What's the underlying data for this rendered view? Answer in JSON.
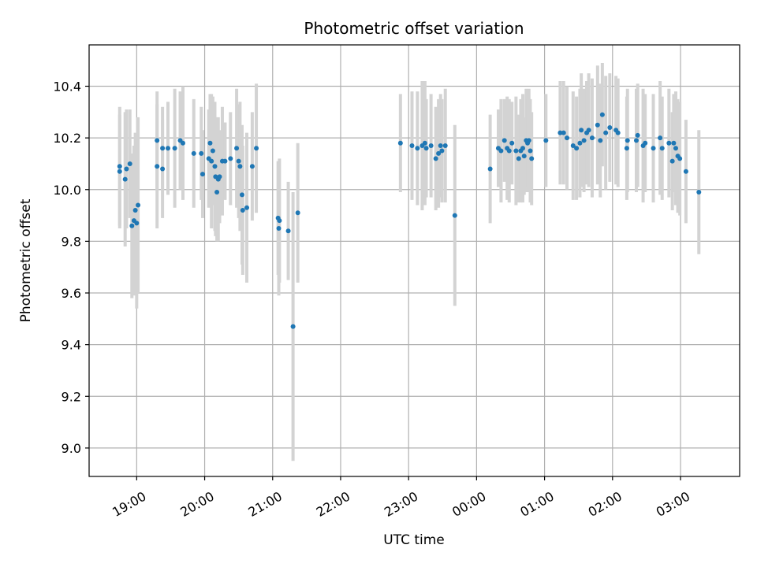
{
  "chart_data": {
    "type": "scatter",
    "title": "Photometric offset variation",
    "xlabel": "UTC time",
    "ylabel": "Photometric offset",
    "x_unit": "UTC time of day (hours after 00:00 on the first night; values above 24 fall after midnight)",
    "xlim": [
      18.3,
      27.87
    ],
    "ylim": [
      8.89,
      10.56
    ],
    "grid": true,
    "x_ticks": [
      {
        "value": 19,
        "label": "19:00"
      },
      {
        "value": 20,
        "label": "20:00"
      },
      {
        "value": 21,
        "label": "21:00"
      },
      {
        "value": 22,
        "label": "22:00"
      },
      {
        "value": 23,
        "label": "23:00"
      },
      {
        "value": 24,
        "label": "00:00"
      },
      {
        "value": 25,
        "label": "01:00"
      },
      {
        "value": 26,
        "label": "02:00"
      },
      {
        "value": 27,
        "label": "03:00"
      }
    ],
    "y_ticks": [
      {
        "value": 9.0,
        "label": "9.0"
      },
      {
        "value": 9.2,
        "label": "9.2"
      },
      {
        "value": 9.4,
        "label": "9.4"
      },
      {
        "value": 9.6,
        "label": "9.6"
      },
      {
        "value": 9.8,
        "label": "9.8"
      },
      {
        "value": 10.0,
        "label": "10.0"
      },
      {
        "value": 10.2,
        "label": "10.2"
      },
      {
        "value": 10.4,
        "label": "10.4"
      }
    ],
    "point_color": "#1f77b4",
    "errorbar_color": "#d3d3d3",
    "points": [
      {
        "x": 18.75,
        "y": 10.09,
        "err": 0.23
      },
      {
        "x": 18.75,
        "y": 10.07,
        "err": 0.22
      },
      {
        "x": 18.83,
        "y": 10.04,
        "err": 0.26
      },
      {
        "x": 18.85,
        "y": 10.08,
        "err": 0.23
      },
      {
        "x": 18.9,
        "y": 10.1,
        "err": 0.21
      },
      {
        "x": 18.93,
        "y": 9.86,
        "err": 0.28
      },
      {
        "x": 18.96,
        "y": 9.88,
        "err": 0.29
      },
      {
        "x": 18.98,
        "y": 9.92,
        "err": 0.3
      },
      {
        "x": 19.0,
        "y": 9.87,
        "err": 0.33
      },
      {
        "x": 19.02,
        "y": 9.94,
        "err": 0.34
      },
      {
        "x": 19.3,
        "y": 10.19,
        "err": 0.19
      },
      {
        "x": 19.3,
        "y": 10.09,
        "err": 0.24
      },
      {
        "x": 19.38,
        "y": 10.08,
        "err": 0.19
      },
      {
        "x": 19.38,
        "y": 10.16,
        "err": 0.16
      },
      {
        "x": 19.46,
        "y": 10.16,
        "err": 0.18
      },
      {
        "x": 19.56,
        "y": 10.16,
        "err": 0.23
      },
      {
        "x": 19.64,
        "y": 10.19,
        "err": 0.19
      },
      {
        "x": 19.68,
        "y": 10.18,
        "err": 0.22
      },
      {
        "x": 19.84,
        "y": 10.14,
        "err": 0.21
      },
      {
        "x": 19.95,
        "y": 10.14,
        "err": 0.18
      },
      {
        "x": 19.97,
        "y": 10.06,
        "err": 0.17
      },
      {
        "x": 20.06,
        "y": 10.12,
        "err": 0.19
      },
      {
        "x": 20.08,
        "y": 10.18,
        "err": 0.19
      },
      {
        "x": 20.1,
        "y": 10.11,
        "err": 0.26
      },
      {
        "x": 20.12,
        "y": 10.15,
        "err": 0.21
      },
      {
        "x": 20.15,
        "y": 10.09,
        "err": 0.25
      },
      {
        "x": 20.16,
        "y": 10.05,
        "err": 0.23
      },
      {
        "x": 20.18,
        "y": 9.99,
        "err": 0.19
      },
      {
        "x": 20.2,
        "y": 10.04,
        "err": 0.24
      },
      {
        "x": 20.22,
        "y": 10.05,
        "err": 0.18
      },
      {
        "x": 20.26,
        "y": 10.11,
        "err": 0.21
      },
      {
        "x": 20.3,
        "y": 10.11,
        "err": 0.15
      },
      {
        "x": 20.38,
        "y": 10.12,
        "err": 0.18
      },
      {
        "x": 20.47,
        "y": 10.16,
        "err": 0.23
      },
      {
        "x": 20.5,
        "y": 10.11,
        "err": 0.22
      },
      {
        "x": 20.52,
        "y": 10.09,
        "err": 0.25
      },
      {
        "x": 20.55,
        "y": 9.98,
        "err": 0.27
      },
      {
        "x": 20.56,
        "y": 9.92,
        "err": 0.25
      },
      {
        "x": 20.62,
        "y": 9.93,
        "err": 0.29
      },
      {
        "x": 20.7,
        "y": 10.09,
        "err": 0.21
      },
      {
        "x": 20.76,
        "y": 10.16,
        "err": 0.25
      },
      {
        "x": 21.08,
        "y": 9.89,
        "err": 0.22
      },
      {
        "x": 21.09,
        "y": 9.85,
        "err": 0.26
      },
      {
        "x": 21.1,
        "y": 9.88,
        "err": 0.24
      },
      {
        "x": 21.23,
        "y": 9.84,
        "err": 0.19
      },
      {
        "x": 21.3,
        "y": 9.47,
        "err": 0.52
      },
      {
        "x": 21.37,
        "y": 9.91,
        "err": 0.27
      },
      {
        "x": 22.88,
        "y": 10.18,
        "err": 0.19
      },
      {
        "x": 23.05,
        "y": 10.17,
        "err": 0.21
      },
      {
        "x": 23.13,
        "y": 10.16,
        "err": 0.22
      },
      {
        "x": 23.2,
        "y": 10.17,
        "err": 0.25
      },
      {
        "x": 23.24,
        "y": 10.18,
        "err": 0.24
      },
      {
        "x": 23.26,
        "y": 10.16,
        "err": 0.19
      },
      {
        "x": 23.33,
        "y": 10.17,
        "err": 0.2
      },
      {
        "x": 23.4,
        "y": 10.12,
        "err": 0.2
      },
      {
        "x": 23.44,
        "y": 10.14,
        "err": 0.21
      },
      {
        "x": 23.47,
        "y": 10.17,
        "err": 0.2
      },
      {
        "x": 23.49,
        "y": 10.15,
        "err": 0.2
      },
      {
        "x": 23.54,
        "y": 10.17,
        "err": 0.22
      },
      {
        "x": 23.68,
        "y": 9.9,
        "err": 0.35
      },
      {
        "x": 24.2,
        "y": 10.08,
        "err": 0.21
      },
      {
        "x": 24.32,
        "y": 10.16,
        "err": 0.15
      },
      {
        "x": 24.36,
        "y": 10.15,
        "err": 0.2
      },
      {
        "x": 24.41,
        "y": 10.19,
        "err": 0.16
      },
      {
        "x": 24.45,
        "y": 10.16,
        "err": 0.2
      },
      {
        "x": 24.48,
        "y": 10.15,
        "err": 0.2
      },
      {
        "x": 24.52,
        "y": 10.18,
        "err": 0.16
      },
      {
        "x": 24.58,
        "y": 10.15,
        "err": 0.21
      },
      {
        "x": 24.62,
        "y": 10.12,
        "err": 0.17
      },
      {
        "x": 24.65,
        "y": 10.15,
        "err": 0.2
      },
      {
        "x": 24.68,
        "y": 10.16,
        "err": 0.21
      },
      {
        "x": 24.7,
        "y": 10.13,
        "err": 0.15
      },
      {
        "x": 24.73,
        "y": 10.19,
        "err": 0.2
      },
      {
        "x": 24.75,
        "y": 10.18,
        "err": 0.17
      },
      {
        "x": 24.77,
        "y": 10.19,
        "err": 0.2
      },
      {
        "x": 24.79,
        "y": 10.15,
        "err": 0.2
      },
      {
        "x": 24.81,
        "y": 10.12,
        "err": 0.18
      },
      {
        "x": 25.02,
        "y": 10.19,
        "err": 0.18
      },
      {
        "x": 25.23,
        "y": 10.22,
        "err": 0.2
      },
      {
        "x": 25.28,
        "y": 10.22,
        "err": 0.2
      },
      {
        "x": 25.33,
        "y": 10.2,
        "err": 0.2
      },
      {
        "x": 25.42,
        "y": 10.17,
        "err": 0.21
      },
      {
        "x": 25.47,
        "y": 10.16,
        "err": 0.2
      },
      {
        "x": 25.52,
        "y": 10.18,
        "err": 0.21
      },
      {
        "x": 25.54,
        "y": 10.23,
        "err": 0.22
      },
      {
        "x": 25.58,
        "y": 10.19,
        "err": 0.2
      },
      {
        "x": 25.62,
        "y": 10.22,
        "err": 0.2
      },
      {
        "x": 25.65,
        "y": 10.23,
        "err": 0.22
      },
      {
        "x": 25.7,
        "y": 10.2,
        "err": 0.23
      },
      {
        "x": 25.78,
        "y": 10.25,
        "err": 0.23
      },
      {
        "x": 25.82,
        "y": 10.19,
        "err": 0.22
      },
      {
        "x": 25.85,
        "y": 10.29,
        "err": 0.2
      },
      {
        "x": 25.9,
        "y": 10.22,
        "err": 0.22
      },
      {
        "x": 25.96,
        "y": 10.24,
        "err": 0.21
      },
      {
        "x": 26.05,
        "y": 10.23,
        "err": 0.21
      },
      {
        "x": 26.08,
        "y": 10.22,
        "err": 0.21
      },
      {
        "x": 26.21,
        "y": 10.16,
        "err": 0.2
      },
      {
        "x": 26.22,
        "y": 10.19,
        "err": 0.2
      },
      {
        "x": 26.35,
        "y": 10.19,
        "err": 0.2
      },
      {
        "x": 26.37,
        "y": 10.21,
        "err": 0.2
      },
      {
        "x": 26.45,
        "y": 10.17,
        "err": 0.22
      },
      {
        "x": 26.48,
        "y": 10.18,
        "err": 0.19
      },
      {
        "x": 26.6,
        "y": 10.16,
        "err": 0.21
      },
      {
        "x": 26.7,
        "y": 10.2,
        "err": 0.22
      },
      {
        "x": 26.73,
        "y": 10.16,
        "err": 0.2
      },
      {
        "x": 26.83,
        "y": 10.18,
        "err": 0.21
      },
      {
        "x": 26.88,
        "y": 10.11,
        "err": 0.19
      },
      {
        "x": 26.9,
        "y": 10.18,
        "err": 0.19
      },
      {
        "x": 26.93,
        "y": 10.16,
        "err": 0.22
      },
      {
        "x": 26.96,
        "y": 10.13,
        "err": 0.22
      },
      {
        "x": 26.99,
        "y": 10.12,
        "err": 0.22
      },
      {
        "x": 27.08,
        "y": 10.07,
        "err": 0.2
      },
      {
        "x": 27.27,
        "y": 9.99,
        "err": 0.24
      }
    ]
  }
}
